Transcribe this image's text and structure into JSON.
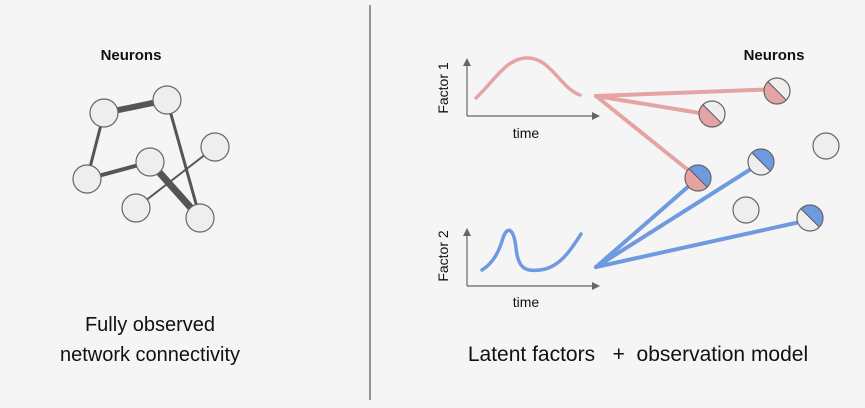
{
  "left": {
    "title": "Neurons",
    "caption_line1": "Fully observed",
    "caption_line2": "network connectivity"
  },
  "right": {
    "title": "Neurons",
    "factor1_label": "Factor 1",
    "factor2_label": "Factor 2",
    "time_label_1": "time",
    "time_label_2": "time",
    "caption": "Latent factors   +  observation model"
  },
  "colors": {
    "background": "#f5f5f5",
    "neuron_fill": "#eeeeee",
    "neuron_stroke": "#666666",
    "edge": "#555555",
    "factor1": "#e5a3a3",
    "factor2": "#6f9ae0",
    "divider": "#333333"
  }
}
